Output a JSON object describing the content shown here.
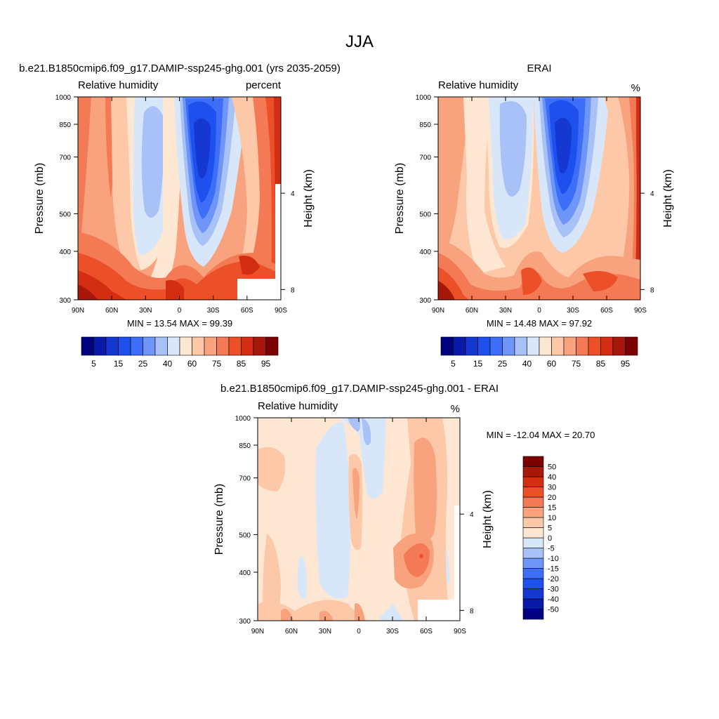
{
  "title": "JJA",
  "panel_labels": {
    "model": "b.e21.B1850cmip6.f09_g17.DAMIP-ssp245-ghg.001 (yrs 2035-2059)",
    "obs": "ERAI",
    "diff": "b.e21.B1850cmip6.f09_g17.DAMIP-ssp245-ghg.001 - ERAI"
  },
  "chart_data": [
    {
      "type": "heatmap",
      "panel": "model",
      "variable_label": "Relative humidity",
      "units_label": "percent",
      "ylabel": "Pressure (mb)",
      "ylabel_right": "Height (km)",
      "x_ticks": [
        "90N",
        "60N",
        "30N",
        "0",
        "30S",
        "60S",
        "90S"
      ],
      "x_range": [
        90,
        -90
      ],
      "y_ticks": [
        300,
        400,
        500,
        700,
        850,
        1000
      ],
      "y_range": [
        1000,
        300
      ],
      "y_scale": "log",
      "height_ticks": [
        4,
        8
      ],
      "min_max_text": "MIN =  13.54  MAX =  99.39",
      "stats": {
        "min": 13.54,
        "max": 99.39
      },
      "colorbar": {
        "orientation": "horizontal",
        "levels": [
          5,
          10,
          15,
          20,
          25,
          30,
          40,
          50,
          60,
          70,
          75,
          80,
          85,
          90,
          95
        ],
        "tick_labels": [
          "5",
          "15",
          "25",
          "40",
          "60",
          "75",
          "85",
          "95"
        ],
        "colors": [
          "#000080",
          "#0a1aa8",
          "#1438d0",
          "#1e50ee",
          "#3c6ef8",
          "#6e96f8",
          "#a8c2f8",
          "#d8e6fa",
          "#fde6d2",
          "#fcc8a8",
          "#f8a27e",
          "#f47a56",
          "#ec5028",
          "#d42e12",
          "#a8180a",
          "#7d0000"
        ]
      }
    },
    {
      "type": "heatmap",
      "panel": "obs",
      "variable_label": "Relative humidity",
      "units_label": "%",
      "ylabel": "Pressure (mb)",
      "ylabel_right": "Height (km)",
      "x_ticks": [
        "90N",
        "60N",
        "30N",
        "0",
        "30S",
        "60S",
        "90S"
      ],
      "x_range": [
        90,
        -90
      ],
      "y_ticks": [
        300,
        400,
        500,
        700,
        850,
        1000
      ],
      "y_range": [
        1000,
        300
      ],
      "y_scale": "log",
      "height_ticks": [
        4,
        8
      ],
      "min_max_text": "MIN =  14.48  MAX =  97.92",
      "stats": {
        "min": 14.48,
        "max": 97.92
      },
      "colorbar": {
        "orientation": "horizontal",
        "levels": [
          5,
          10,
          15,
          20,
          25,
          30,
          40,
          50,
          60,
          70,
          75,
          80,
          85,
          90,
          95
        ],
        "tick_labels": [
          "5",
          "15",
          "25",
          "40",
          "60",
          "75",
          "85",
          "95"
        ],
        "colors": [
          "#000080",
          "#0a1aa8",
          "#1438d0",
          "#1e50ee",
          "#3c6ef8",
          "#6e96f8",
          "#a8c2f8",
          "#d8e6fa",
          "#fde6d2",
          "#fcc8a8",
          "#f8a27e",
          "#f47a56",
          "#ec5028",
          "#d42e12",
          "#a8180a",
          "#7d0000"
        ]
      }
    },
    {
      "type": "heatmap",
      "panel": "diff",
      "variable_label": "Relative humidity",
      "units_label": "%",
      "ylabel": "Pressure (mb)",
      "ylabel_right": "Height (km)",
      "x_ticks": [
        "90N",
        "60N",
        "30N",
        "0",
        "30S",
        "60S",
        "90S"
      ],
      "x_range": [
        90,
        -90
      ],
      "y_ticks": [
        300,
        400,
        500,
        700,
        850,
        1000
      ],
      "y_range": [
        1000,
        300
      ],
      "y_scale": "log",
      "height_ticks": [
        4,
        8
      ],
      "min_max_text": "MIN = -12.04  MAX =  20.70",
      "stats": {
        "min": -12.04,
        "max": 20.7
      },
      "colorbar": {
        "orientation": "vertical",
        "levels": [
          -50,
          -40,
          -30,
          -20,
          -15,
          -10,
          -5,
          0,
          5,
          10,
          15,
          20,
          30,
          40,
          50
        ],
        "tick_labels": [
          "-50",
          "-40",
          "-30",
          "-20",
          "-15",
          "-10",
          "-5",
          "0",
          "5",
          "10",
          "15",
          "20",
          "30",
          "40",
          "50"
        ],
        "colors": [
          "#000080",
          "#0a1aa8",
          "#1438d0",
          "#1e50ee",
          "#3c6ef8",
          "#6e96f8",
          "#a8c2f8",
          "#d8e6fa",
          "#fde6d2",
          "#fcc8a8",
          "#f8a27e",
          "#f47a56",
          "#ec5028",
          "#d42e12",
          "#a8180a",
          "#7d0000"
        ]
      }
    }
  ]
}
